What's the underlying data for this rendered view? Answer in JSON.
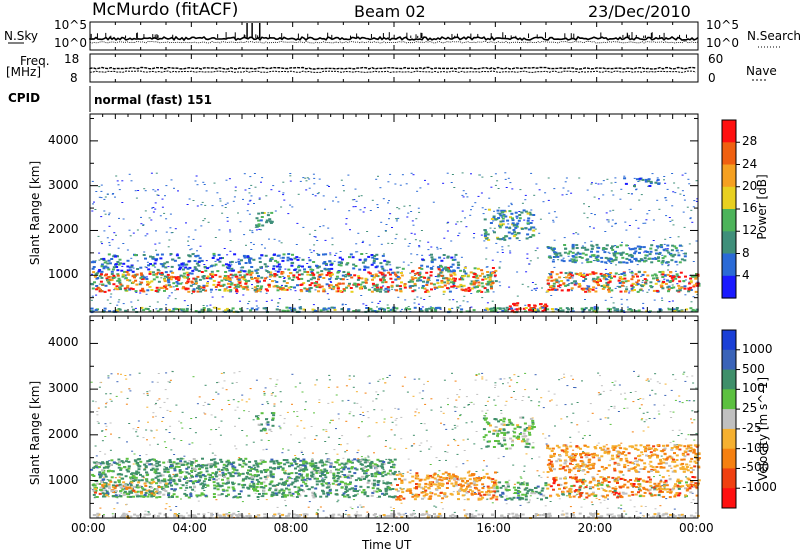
{
  "header": {
    "station": "McMurdo (fitACF)",
    "beam": "Beam 02",
    "date": "23/Dec/2010"
  },
  "top_panels": {
    "nsky_label": "N.Sky",
    "nsky_ticks": [
      "10^5",
      "10^0"
    ],
    "nsearch_label": "N.Search",
    "nsearch_ticks": [
      "10^5",
      "10^0"
    ],
    "freq_label": "Freq.",
    "freq_unit": "[MHz]",
    "freq_ticks": [
      "18",
      "8"
    ],
    "nave_label": "Nave",
    "nave_ticks": [
      "60",
      "0"
    ],
    "cpid_label": "CPID",
    "cpid_value": "normal (fast) 151"
  },
  "chart_data": [
    {
      "type": "heatmap",
      "name": "power",
      "ylabel": "Slant Range [km]",
      "ylim": [
        180,
        4600
      ],
      "yticks": [
        "1000",
        "2000",
        "3000",
        "4000"
      ],
      "colorbar_label": "Power [dB]",
      "colorbar_ticks": [
        "4",
        "8",
        "12",
        "16",
        "20",
        "24",
        "28"
      ],
      "colorbar_colors": [
        "#1a1aff",
        "#2a6ad6",
        "#3f8f7a",
        "#4db35a",
        "#e8d020",
        "#f5a020",
        "#f06010",
        "#ff1010"
      ],
      "features": [
        {
          "x": [
            0,
            24
          ],
          "range": [
            650,
            1300
          ],
          "level": "moderate-to-strong"
        },
        {
          "x": [
            6.5,
            7.2
          ],
          "range": [
            2100,
            2500
          ],
          "level": "moderate"
        },
        {
          "x": [
            15.5,
            17.5
          ],
          "range": [
            1800,
            2500
          ],
          "level": "moderate"
        },
        {
          "x": [
            16.5,
            18.2
          ],
          "range": [
            200,
            400
          ],
          "level": "strong"
        },
        {
          "x": [
            18,
            23.5
          ],
          "range": [
            1300,
            1700
          ],
          "level": "moderate"
        }
      ]
    },
    {
      "type": "heatmap",
      "name": "velocity",
      "xlabel": "Time UT",
      "ylabel": "Slant Range [km]",
      "xticks": [
        "00:00",
        "04:00",
        "08:00",
        "12:00",
        "16:00",
        "20:00",
        "00:00"
      ],
      "ylim": [
        180,
        4600
      ],
      "yticks": [
        "1000",
        "2000",
        "3000",
        "4000"
      ],
      "colorbar_label": "Velocity [m s^-1]",
      "colorbar_ticks": [
        "1000",
        "500",
        "100",
        "25",
        "-25",
        "-100",
        "-500",
        "-1000"
      ],
      "colorbar_colors": [
        "#1a3fd6",
        "#3a63b8",
        "#3f8f6a",
        "#5cc040",
        "#c0c0c0",
        "#f5b030",
        "#f58010",
        "#f04010",
        "#ff1010"
      ],
      "features": [
        {
          "x": [
            0,
            12
          ],
          "range": [
            650,
            1500
          ],
          "velocity_class": "100 to 500"
        },
        {
          "x": [
            12,
            16
          ],
          "range": [
            600,
            1200
          ],
          "velocity_class": "-100 to -500"
        },
        {
          "x": [
            18,
            24
          ],
          "range": [
            1200,
            1800
          ],
          "velocity_class": "-100 to -500"
        },
        {
          "x": [
            15.5,
            17.5
          ],
          "range": [
            1700,
            2400
          ],
          "velocity_class": "25 to 100"
        }
      ]
    }
  ]
}
